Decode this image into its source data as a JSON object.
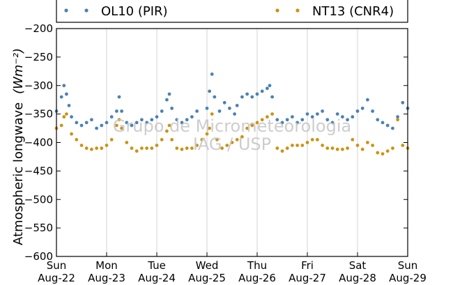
{
  "chart_data": {
    "type": "scatter",
    "ylabel": "Atmospheric longwave",
    "ylabel_unit": "(Wm⁻²)",
    "ylim": [
      -600,
      -200
    ],
    "yticks": [
      -200,
      -250,
      -300,
      -350,
      -400,
      -450,
      -500,
      -550,
      -600
    ],
    "xlim": [
      "Aug-22",
      "Aug-29"
    ],
    "xticks": [
      {
        "day": "Sun",
        "date": "Aug-22"
      },
      {
        "day": "Mon",
        "date": "Aug-23"
      },
      {
        "day": "Tue",
        "date": "Aug-24"
      },
      {
        "day": "Wed",
        "date": "Aug-25"
      },
      {
        "day": "Thu",
        "date": "Aug-26"
      },
      {
        "day": "Fri",
        "date": "Aug-27"
      },
      {
        "day": "Sat",
        "date": "Aug-28"
      },
      {
        "day": "Sun",
        "date": "Aug-29"
      }
    ],
    "grid": "vertical",
    "legend_position": "top, outside",
    "watermark": [
      "Grupo de Micrometeorologia",
      "IAG / USP"
    ],
    "series": [
      {
        "name": "OL10 (PIR)",
        "color": "#4a82b4",
        "x_unit": "day",
        "points": [
          [
            0.0,
            -345
          ],
          [
            0.1,
            -320
          ],
          [
            0.15,
            -300
          ],
          [
            0.2,
            -315
          ],
          [
            0.25,
            -335
          ],
          [
            0.3,
            -355
          ],
          [
            0.4,
            -365
          ],
          [
            0.5,
            -370
          ],
          [
            0.6,
            -365
          ],
          [
            0.7,
            -360
          ],
          [
            0.8,
            -375
          ],
          [
            0.9,
            -370
          ],
          [
            1.0,
            -365
          ],
          [
            1.1,
            -355
          ],
          [
            1.2,
            -345
          ],
          [
            1.25,
            -320
          ],
          [
            1.3,
            -345
          ],
          [
            1.4,
            -365
          ],
          [
            1.5,
            -370
          ],
          [
            1.6,
            -365
          ],
          [
            1.7,
            -360
          ],
          [
            1.8,
            -365
          ],
          [
            1.9,
            -360
          ],
          [
            2.0,
            -355
          ],
          [
            2.1,
            -345
          ],
          [
            2.2,
            -325
          ],
          [
            2.25,
            -315
          ],
          [
            2.3,
            -340
          ],
          [
            2.4,
            -360
          ],
          [
            2.5,
            -365
          ],
          [
            2.6,
            -360
          ],
          [
            2.7,
            -355
          ],
          [
            2.8,
            -345
          ],
          [
            3.0,
            -340
          ],
          [
            3.05,
            -310
          ],
          [
            3.1,
            -280
          ],
          [
            3.15,
            -320
          ],
          [
            3.25,
            -345
          ],
          [
            3.35,
            -330
          ],
          [
            3.45,
            -340
          ],
          [
            3.55,
            -350
          ],
          [
            3.6,
            -335
          ],
          [
            3.7,
            -320
          ],
          [
            3.8,
            -315
          ],
          [
            3.9,
            -320
          ],
          [
            4.0,
            -315
          ],
          [
            4.1,
            -310
          ],
          [
            4.2,
            -305
          ],
          [
            4.25,
            -300
          ],
          [
            4.3,
            -320
          ],
          [
            4.4,
            -360
          ],
          [
            4.5,
            -365
          ],
          [
            4.6,
            -360
          ],
          [
            4.7,
            -355
          ],
          [
            4.8,
            -365
          ],
          [
            4.9,
            -360
          ],
          [
            5.0,
            -350
          ],
          [
            5.1,
            -355
          ],
          [
            5.2,
            -350
          ],
          [
            5.3,
            -345
          ],
          [
            5.4,
            -360
          ],
          [
            5.5,
            -365
          ],
          [
            5.6,
            -350
          ],
          [
            5.7,
            -355
          ],
          [
            5.8,
            -360
          ],
          [
            5.9,
            -355
          ],
          [
            6.0,
            -345
          ],
          [
            6.1,
            -340
          ],
          [
            6.2,
            -325
          ],
          [
            6.3,
            -345
          ],
          [
            6.4,
            -360
          ],
          [
            6.5,
            -365
          ],
          [
            6.6,
            -370
          ],
          [
            6.7,
            -375
          ],
          [
            6.8,
            -355
          ],
          [
            6.9,
            -330
          ],
          [
            7.0,
            -340
          ]
        ]
      },
      {
        "name": "NT13 (CNR4)",
        "color": "#cc9214",
        "x_unit": "day",
        "points": [
          [
            0.0,
            -375
          ],
          [
            0.1,
            -370
          ],
          [
            0.15,
            -355
          ],
          [
            0.2,
            -350
          ],
          [
            0.3,
            -385
          ],
          [
            0.4,
            -395
          ],
          [
            0.5,
            -405
          ],
          [
            0.6,
            -410
          ],
          [
            0.7,
            -412
          ],
          [
            0.8,
            -410
          ],
          [
            0.9,
            -410
          ],
          [
            1.0,
            -405
          ],
          [
            1.1,
            -395
          ],
          [
            1.2,
            -370
          ],
          [
            1.25,
            -360
          ],
          [
            1.3,
            -375
          ],
          [
            1.4,
            -400
          ],
          [
            1.5,
            -410
          ],
          [
            1.6,
            -415
          ],
          [
            1.7,
            -410
          ],
          [
            1.8,
            -410
          ],
          [
            1.9,
            -410
          ],
          [
            2.0,
            -405
          ],
          [
            2.1,
            -395
          ],
          [
            2.2,
            -380
          ],
          [
            2.25,
            -370
          ],
          [
            2.3,
            -395
          ],
          [
            2.4,
            -410
          ],
          [
            2.5,
            -412
          ],
          [
            2.6,
            -410
          ],
          [
            2.7,
            -410
          ],
          [
            2.8,
            -405
          ],
          [
            2.9,
            -395
          ],
          [
            3.0,
            -385
          ],
          [
            3.05,
            -375
          ],
          [
            3.1,
            -350
          ],
          [
            3.2,
            -395
          ],
          [
            3.3,
            -410
          ],
          [
            3.4,
            -405
          ],
          [
            3.5,
            -400
          ],
          [
            3.6,
            -395
          ],
          [
            3.7,
            -390
          ],
          [
            3.8,
            -375
          ],
          [
            3.9,
            -370
          ],
          [
            4.0,
            -365
          ],
          [
            4.1,
            -360
          ],
          [
            4.2,
            -355
          ],
          [
            4.3,
            -350
          ],
          [
            4.4,
            -410
          ],
          [
            4.5,
            -415
          ],
          [
            4.6,
            -410
          ],
          [
            4.7,
            -405
          ],
          [
            4.8,
            -405
          ],
          [
            4.9,
            -405
          ],
          [
            5.0,
            -400
          ],
          [
            5.1,
            -395
          ],
          [
            5.2,
            -395
          ],
          [
            5.3,
            -405
          ],
          [
            5.4,
            -410
          ],
          [
            5.5,
            -410
          ],
          [
            5.6,
            -412
          ],
          [
            5.7,
            -412
          ],
          [
            5.8,
            -410
          ],
          [
            5.9,
            -395
          ],
          [
            6.0,
            -405
          ],
          [
            6.1,
            -412
          ],
          [
            6.2,
            -400
          ],
          [
            6.3,
            -405
          ],
          [
            6.4,
            -418
          ],
          [
            6.5,
            -420
          ],
          [
            6.6,
            -415
          ],
          [
            6.7,
            -410
          ],
          [
            6.8,
            -360
          ],
          [
            6.9,
            -405
          ],
          [
            7.0,
            -410
          ]
        ]
      }
    ]
  }
}
